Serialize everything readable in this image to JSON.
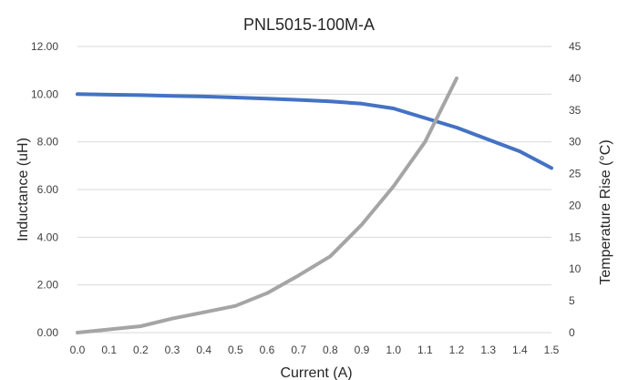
{
  "chart_data": {
    "type": "line",
    "title": "PNL5015-100M-A",
    "xlabel": "Current (A)",
    "ylabel": "Inductance (uH)",
    "y2label": "Temperature Rise (°C)",
    "xlim": [
      0.0,
      1.5
    ],
    "ylim": [
      0,
      12
    ],
    "y2lim": [
      0,
      45
    ],
    "grid": true,
    "x_ticks": [
      "0.0",
      "0.1",
      "0.2",
      "0.3",
      "0.4",
      "0.5",
      "0.6",
      "0.7",
      "0.8",
      "0.9",
      "1.0",
      "1.1",
      "1.2",
      "1.3",
      "1.4",
      "1.5"
    ],
    "y_ticks": [
      "0.00",
      "2.00",
      "4.00",
      "6.00",
      "8.00",
      "10.00",
      "12.00"
    ],
    "y2_ticks": [
      "0",
      "5",
      "10",
      "15",
      "20",
      "25",
      "30",
      "35",
      "40",
      "45"
    ],
    "series": [
      {
        "axis": "left",
        "color": "#4472c4",
        "x": [
          0.0,
          0.1,
          0.2,
          0.3,
          0.4,
          0.5,
          0.6,
          0.7,
          0.8,
          0.9,
          1.0,
          1.1,
          1.2,
          1.3,
          1.4,
          1.5
        ],
        "y": [
          10.0,
          9.98,
          9.96,
          9.93,
          9.9,
          9.86,
          9.81,
          9.76,
          9.7,
          9.6,
          9.4,
          9.0,
          8.6,
          8.1,
          7.6,
          6.9
        ]
      },
      {
        "axis": "right",
        "color": "#a5a5a5",
        "x": [
          0.0,
          0.1,
          0.2,
          0.3,
          0.4,
          0.5,
          0.6,
          0.7,
          0.8,
          0.9,
          1.0,
          1.1,
          1.2
        ],
        "y": [
          0,
          0.5,
          1,
          2.2,
          3.2,
          4.2,
          6.2,
          9,
          12,
          17,
          23,
          30,
          40
        ]
      }
    ]
  }
}
